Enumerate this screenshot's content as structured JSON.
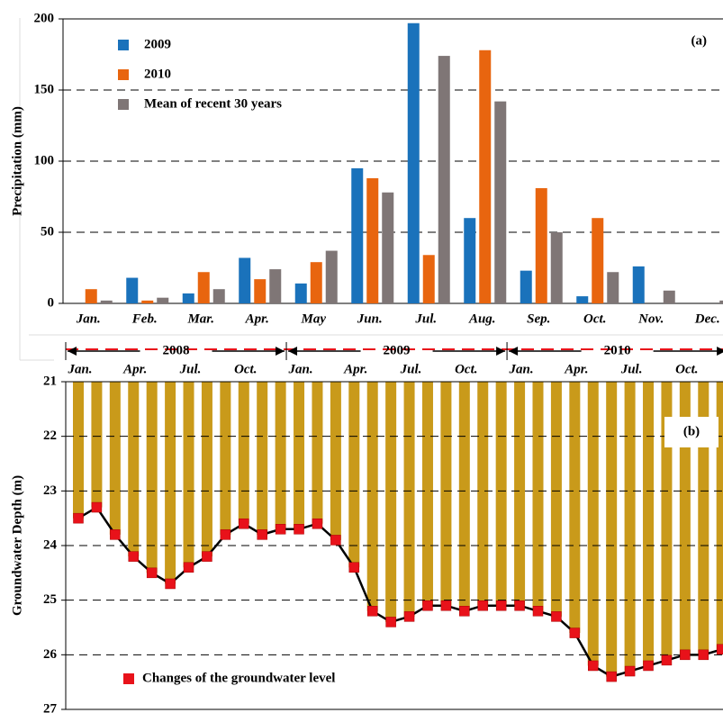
{
  "chart_data": [
    {
      "type": "bar",
      "annotation": "(a)",
      "y_label": "Precipitation (mm)",
      "categories": [
        "Jan.",
        "Feb.",
        "Mar.",
        "Apr.",
        "May",
        "Jun.",
        "Jul.",
        "Aug.",
        "Sep.",
        "Oct.",
        "Nov.",
        "Dec."
      ],
      "series": [
        {
          "name": "2009",
          "color": "#1a72bb",
          "values": [
            0,
            18,
            7,
            32,
            14,
            95,
            197,
            60,
            23,
            5,
            26,
            0
          ]
        },
        {
          "name": "2010",
          "color": "#e8650f",
          "values": [
            10,
            2,
            22,
            17,
            29,
            88,
            34,
            178,
            81,
            60,
            0,
            0
          ]
        },
        {
          "name": "Mean of recent 30 years",
          "color": "#7f7676",
          "values": [
            2,
            4,
            10,
            24,
            37,
            78,
            174,
            142,
            50,
            22,
            9,
            2
          ]
        }
      ],
      "ylim": [
        0,
        200
      ],
      "yticks": [
        0,
        50,
        100,
        150,
        200
      ],
      "grid": true,
      "legend": "top-left"
    },
    {
      "type": "line",
      "annotation": "(b)",
      "y_label": "Groundwater Depth (m)",
      "years": [
        "2008",
        "2009",
        "2010"
      ],
      "categories": [
        "Jan.",
        null,
        null,
        "Apr.",
        null,
        null,
        "Jul.",
        null,
        null,
        "Oct.",
        null,
        null,
        "Jan.",
        null,
        null,
        "Apr.",
        null,
        null,
        "Jul.",
        null,
        null,
        "Oct.",
        null,
        null,
        "Jan.",
        null,
        null,
        "Apr.",
        null,
        null,
        "Jul.",
        null,
        null,
        "Oct.",
        null,
        null
      ],
      "series": [
        {
          "name": "Changes of the groundwater level",
          "color": "#e8121a",
          "values": [
            23.5,
            23.3,
            23.8,
            24.2,
            24.5,
            24.7,
            24.4,
            24.2,
            23.8,
            23.6,
            23.8,
            23.7,
            23.7,
            23.6,
            23.9,
            24.4,
            25.2,
            25.4,
            25.3,
            25.1,
            25.1,
            25.2,
            25.1,
            25.1,
            25.1,
            25.2,
            25.3,
            25.6,
            26.2,
            26.4,
            26.3,
            26.2,
            26.1,
            26.0,
            26.0,
            25.9
          ]
        }
      ],
      "bar_color": "#c99a1a",
      "line_color": "#000000",
      "ylim": [
        21,
        27
      ],
      "y_inverted": true,
      "yticks": [
        21,
        22,
        23,
        24,
        25,
        26,
        27
      ],
      "grid": true,
      "legend": "bottom-left"
    }
  ]
}
